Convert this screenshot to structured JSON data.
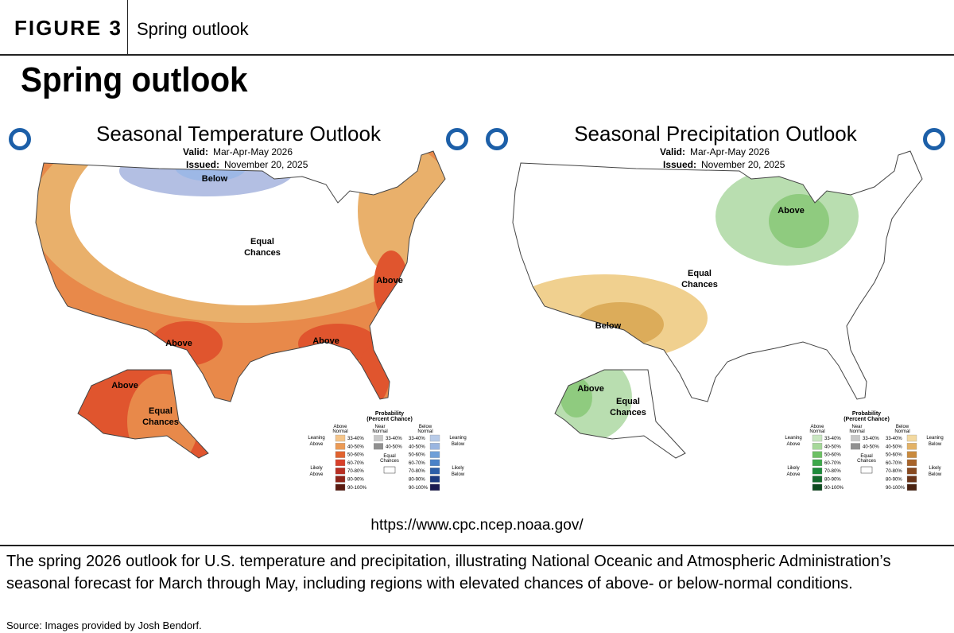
{
  "header": {
    "figure_label": "FIGURE 3",
    "figure_name": "Spring outlook"
  },
  "title": "Spring outlook",
  "maps": [
    {
      "title": "Seasonal Temperature Outlook",
      "valid_label": "Valid:",
      "valid": "Mar-Apr-May 2026",
      "issued_label": "Issued:",
      "issued": "November 20, 2025",
      "region_labels": [
        [
          "Below"
        ],
        [
          "Equal",
          "Chances"
        ],
        [
          "Above"
        ],
        [
          "Above"
        ],
        [
          "Above"
        ],
        [
          "Above"
        ],
        [
          "Equal",
          "Chances"
        ]
      ],
      "legend": {
        "title": [
          "Probability",
          "(Percent Chance)"
        ],
        "columns": [
          [
            "Above",
            "Normal"
          ],
          [
            "Near",
            "Normal"
          ],
          [
            "Below",
            "Normal"
          ]
        ],
        "above": [
          "33-40%",
          "40-50%",
          "50-60%",
          "60-70%",
          "70-80%",
          "80-90%",
          "90-100%"
        ],
        "near": [
          "33-40%",
          "40-50%"
        ],
        "below": [
          "33-40%",
          "40-50%",
          "50-60%",
          "60-70%",
          "70-80%",
          "80-90%",
          "90-100%"
        ],
        "equal": [
          "Equal",
          "Chances"
        ],
        "left": [
          [
            "Leaning",
            "Above"
          ],
          [
            "Likely",
            "Above"
          ]
        ],
        "right": [
          [
            "Leaning",
            "Below"
          ],
          [
            "Likely",
            "Below"
          ]
        ]
      }
    },
    {
      "title": "Seasonal Precipitation Outlook",
      "valid_label": "Valid:",
      "valid": "Mar-Apr-May 2026",
      "issued_label": "Issued:",
      "issued": "November 20, 2025",
      "region_labels": [
        [
          "Above"
        ],
        [
          "Equal",
          "Chances"
        ],
        [
          "Below"
        ],
        [
          "Above"
        ],
        [
          "Equal",
          "Chances"
        ]
      ],
      "legend": {
        "title": [
          "Probability",
          "(Percent Chance)"
        ],
        "columns": [
          [
            "Above",
            "Normal"
          ],
          [
            "Near",
            "Normal"
          ],
          [
            "Below",
            "Normal"
          ]
        ],
        "above": [
          "33-40%",
          "40-50%",
          "50-60%",
          "60-70%",
          "70-80%",
          "80-90%",
          "90-100%"
        ],
        "near": [
          "33-40%",
          "40-50%"
        ],
        "below": [
          "33-40%",
          "40-50%",
          "50-60%",
          "60-70%",
          "70-80%",
          "80-90%",
          "90-100%"
        ],
        "equal": [
          "Equal",
          "Chances"
        ],
        "left": [
          [
            "Leaning",
            "Above"
          ],
          [
            "Likely",
            "Above"
          ]
        ],
        "right": [
          [
            "Leaning",
            "Below"
          ],
          [
            "Likely",
            "Below"
          ]
        ]
      }
    }
  ],
  "url": "https://www.cpc.ncep.noaa.gov/",
  "caption": "The spring 2026 outlook for U.S. temperature and precipitation, illustrating National Oceanic and Atmospheric Administration’s seasonal forecast for March through May, including regions with elevated chances of above- or below-normal conditions.",
  "source": "Source: Images provided by Josh Bendorf."
}
